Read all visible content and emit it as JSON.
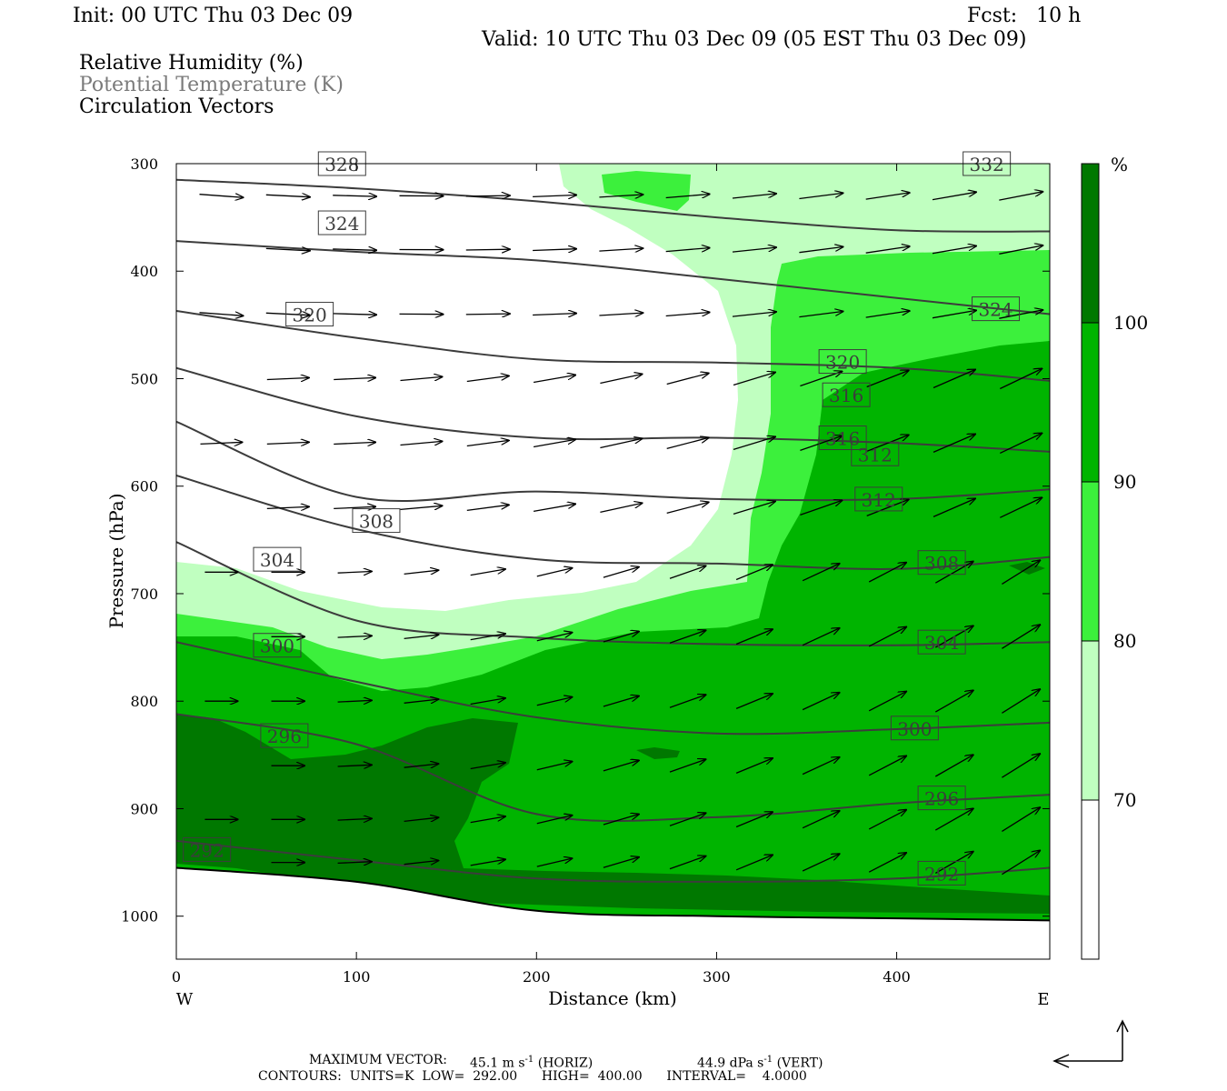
{
  "header": {
    "init": "Init: 00 UTC Thu 03 Dec 09",
    "fcst": "Fcst:   10 h",
    "valid": "Valid: 10 UTC Thu 03 Dec 09 (05 EST Thu 03 Dec 09)",
    "field1": "Relative Humidity (%)",
    "field2": "Potential Temperature (K)",
    "field3": "Circulation Vectors"
  },
  "footer": {
    "max_vector_label": "MAXIMUM VECTOR:",
    "max_vector_horiz": "45.1 m s",
    "horiz_tag": "(HORIZ)",
    "max_vector_vert": "44.9 dPa s",
    "vert_tag": "(VERT)",
    "exp_text": "-1",
    "contours": "CONTOURS:  UNITS=K  LOW=  292.00      HIGH=  400.00      INTERVAL=    4.0000"
  },
  "colors": {
    "rh_70_80": "#c0ffc0",
    "rh_80_90": "#3cf03c",
    "rh_90_100": "#00b400",
    "rh_100": "#007800",
    "contour": "#3c3c3c",
    "vector": "#000000"
  },
  "chart_data": {
    "type": "heatmap",
    "xlabel": "Distance (km)",
    "ylabel": "Pressure (hPa)",
    "xlim": [
      0,
      485
    ],
    "ylim": [
      1040,
      300
    ],
    "x_ticks": [
      "0",
      "100",
      "200",
      "300",
      "400"
    ],
    "y_ticks": [
      "300",
      "400",
      "500",
      "600",
      "700",
      "800",
      "900",
      "1000"
    ],
    "x_end_labels": {
      "left": "W",
      "right": "E"
    },
    "colorbar": {
      "unit": "%",
      "levels": [
        "70",
        "80",
        "90",
        "100"
      ]
    },
    "theta_contours": [
      {
        "label": "328",
        "points": [
          [
            0,
            315
          ],
          [
            100,
            323
          ],
          [
            200,
            335
          ],
          [
            300,
            350
          ],
          [
            400,
            362
          ],
          [
            485,
            363
          ]
        ]
      },
      {
        "label": "324",
        "points": [
          [
            0,
            372
          ],
          [
            100,
            382
          ],
          [
            200,
            390
          ],
          [
            300,
            407
          ],
          [
            400,
            425
          ],
          [
            485,
            440
          ]
        ]
      },
      {
        "label": "320",
        "points": [
          [
            0,
            437
          ],
          [
            100,
            462
          ],
          [
            200,
            482
          ],
          [
            300,
            485
          ],
          [
            400,
            490
          ],
          [
            485,
            502
          ]
        ]
      },
      {
        "label": "316",
        "points": [
          [
            0,
            490
          ],
          [
            100,
            535
          ],
          [
            200,
            555
          ],
          [
            300,
            555
          ],
          [
            400,
            560
          ],
          [
            485,
            568
          ]
        ]
      },
      {
        "label": "312",
        "points": [
          [
            0,
            540
          ],
          [
            100,
            610
          ],
          [
            200,
            605
          ],
          [
            300,
            612
          ],
          [
            400,
            612
          ],
          [
            485,
            603
          ]
        ]
      },
      {
        "label": "308",
        "points": [
          [
            0,
            590
          ],
          [
            100,
            640
          ],
          [
            200,
            668
          ],
          [
            300,
            672
          ],
          [
            400,
            677
          ],
          [
            485,
            666
          ]
        ]
      },
      {
        "label": "304",
        "points": [
          [
            0,
            652
          ],
          [
            100,
            725
          ],
          [
            200,
            741
          ],
          [
            300,
            747
          ],
          [
            400,
            748
          ],
          [
            485,
            745
          ]
        ]
      },
      {
        "label": "300",
        "points": [
          [
            0,
            745
          ],
          [
            100,
            782
          ],
          [
            200,
            815
          ],
          [
            300,
            830
          ],
          [
            400,
            826
          ],
          [
            485,
            820
          ]
        ]
      },
      {
        "label": "296",
        "points": [
          [
            0,
            812
          ],
          [
            100,
            840
          ],
          [
            200,
            905
          ],
          [
            300,
            908
          ],
          [
            400,
            895
          ],
          [
            485,
            887
          ]
        ]
      },
      {
        "label": "292",
        "points": [
          [
            0,
            930
          ],
          [
            100,
            948
          ],
          [
            200,
            965
          ],
          [
            300,
            968
          ],
          [
            400,
            965
          ],
          [
            485,
            955
          ]
        ]
      }
    ],
    "surface_pressure": [
      [
        0,
        955
      ],
      [
        100,
        968
      ],
      [
        200,
        995
      ],
      [
        300,
        1000
      ],
      [
        400,
        1002
      ],
      [
        485,
        1004
      ]
    ]
  }
}
